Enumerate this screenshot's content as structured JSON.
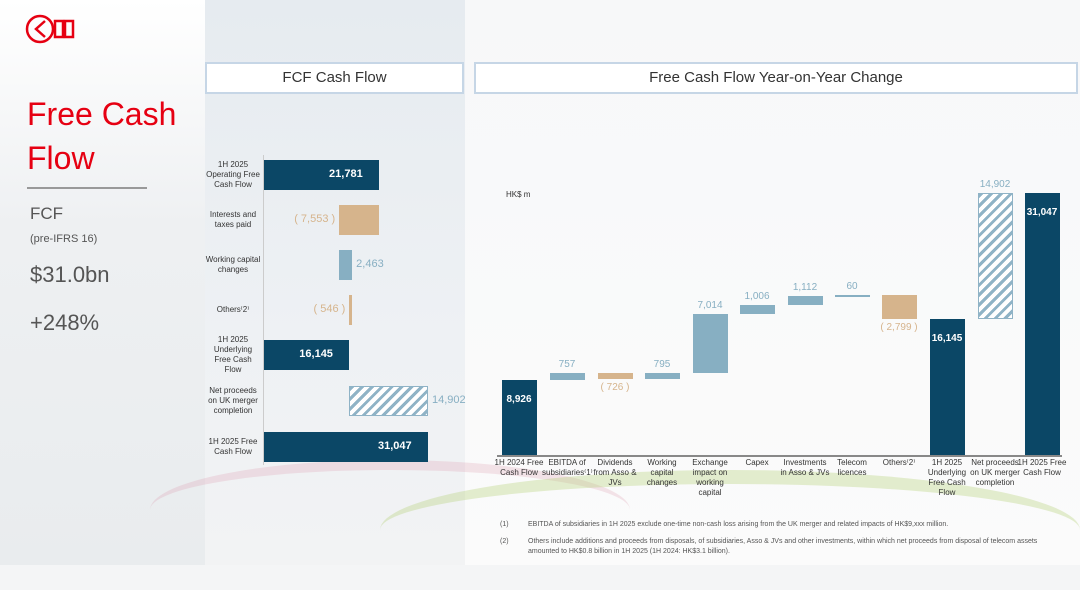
{
  "header": {
    "left_title": "FCF Cash Flow",
    "right_title": "Free Cash Flow Year-on-Year Change",
    "unit": "HK$ m"
  },
  "sidebar": {
    "title_line1": "Free Cash",
    "title_line2": "Flow",
    "kpi_label": "FCF",
    "kpi_sub": "(pre-IFRS 16)",
    "kpi_value": "$31.0bn",
    "kpi_change": "+248%",
    "logo_text": "CKH"
  },
  "colors": {
    "total": "#0b4766",
    "increase": "#87afc2",
    "decrease": "#d6b48c",
    "accent": "#e60012"
  },
  "chart_data": [
    {
      "type": "bar",
      "orientation": "horizontal",
      "title": "FCF Cash Flow",
      "categories": [
        "1H 2025 Operating Free Cash Flow",
        "Interests and taxes paid",
        "Working capital changes",
        "Others(2)",
        "1H 2025 Underlying Free Cash Flow",
        "Net proceeds on UK merger completion",
        "1H 2025 Free Cash Flow"
      ],
      "values": [
        21781,
        -7553,
        2463,
        -546,
        16145,
        14902,
        31047
      ],
      "kinds": [
        "total",
        "decrease",
        "increase",
        "decrease",
        "total",
        "hatched",
        "total"
      ],
      "labels": [
        "21,781",
        "( 7,553 )",
        "2,463",
        "( 546 )",
        "16,145",
        "14,902",
        "31,047"
      ]
    },
    {
      "type": "bar",
      "subtype": "waterfall",
      "title": "Free Cash Flow Year-on-Year Change",
      "ylabel": "HK$ m",
      "categories": [
        "1H 2024 Free Cash Flow",
        "EBITDA of subsidiaries(1)",
        "Dividends from Asso & JVs",
        "Working capital changes",
        "Exchange impact on working capital",
        "Capex",
        "Investments in Asso & JVs",
        "Telecom licences",
        "Others(2)",
        "1H 2025 Underlying Free Cash Flow",
        "Net proceeds on UK merger completion",
        "1H 2025 Free Cash Flow"
      ],
      "values": [
        8926,
        757,
        -726,
        795,
        7014,
        1006,
        1112,
        60,
        -2799,
        16145,
        14902,
        31047
      ],
      "kinds": [
        "total",
        "increase",
        "decrease",
        "increase",
        "increase",
        "increase",
        "increase",
        "increase",
        "decrease",
        "total",
        "hatched",
        "total"
      ],
      "labels": [
        "8,926",
        "757",
        "( 726 )",
        "795",
        "7,014",
        "1,006",
        "1,112",
        "60",
        "( 2,799 )",
        "16,145",
        "14,902",
        "31,047"
      ]
    }
  ],
  "footnotes": [
    {
      "num": "(1)",
      "text": "EBITDA of subsidiaries in 1H 2025 exclude one-time non-cash loss arising from the UK merger and related impacts of HK$9,xxx million."
    },
    {
      "num": "(2)",
      "text": "Others include additions and proceeds from disposals, of subsidiaries, Asso & JVs and other investments, within which net proceeds from disposal of telecom assets amounted to HK$0.8 billion in 1H 2025 (1H 2024: HK$3.1 billion)."
    }
  ]
}
